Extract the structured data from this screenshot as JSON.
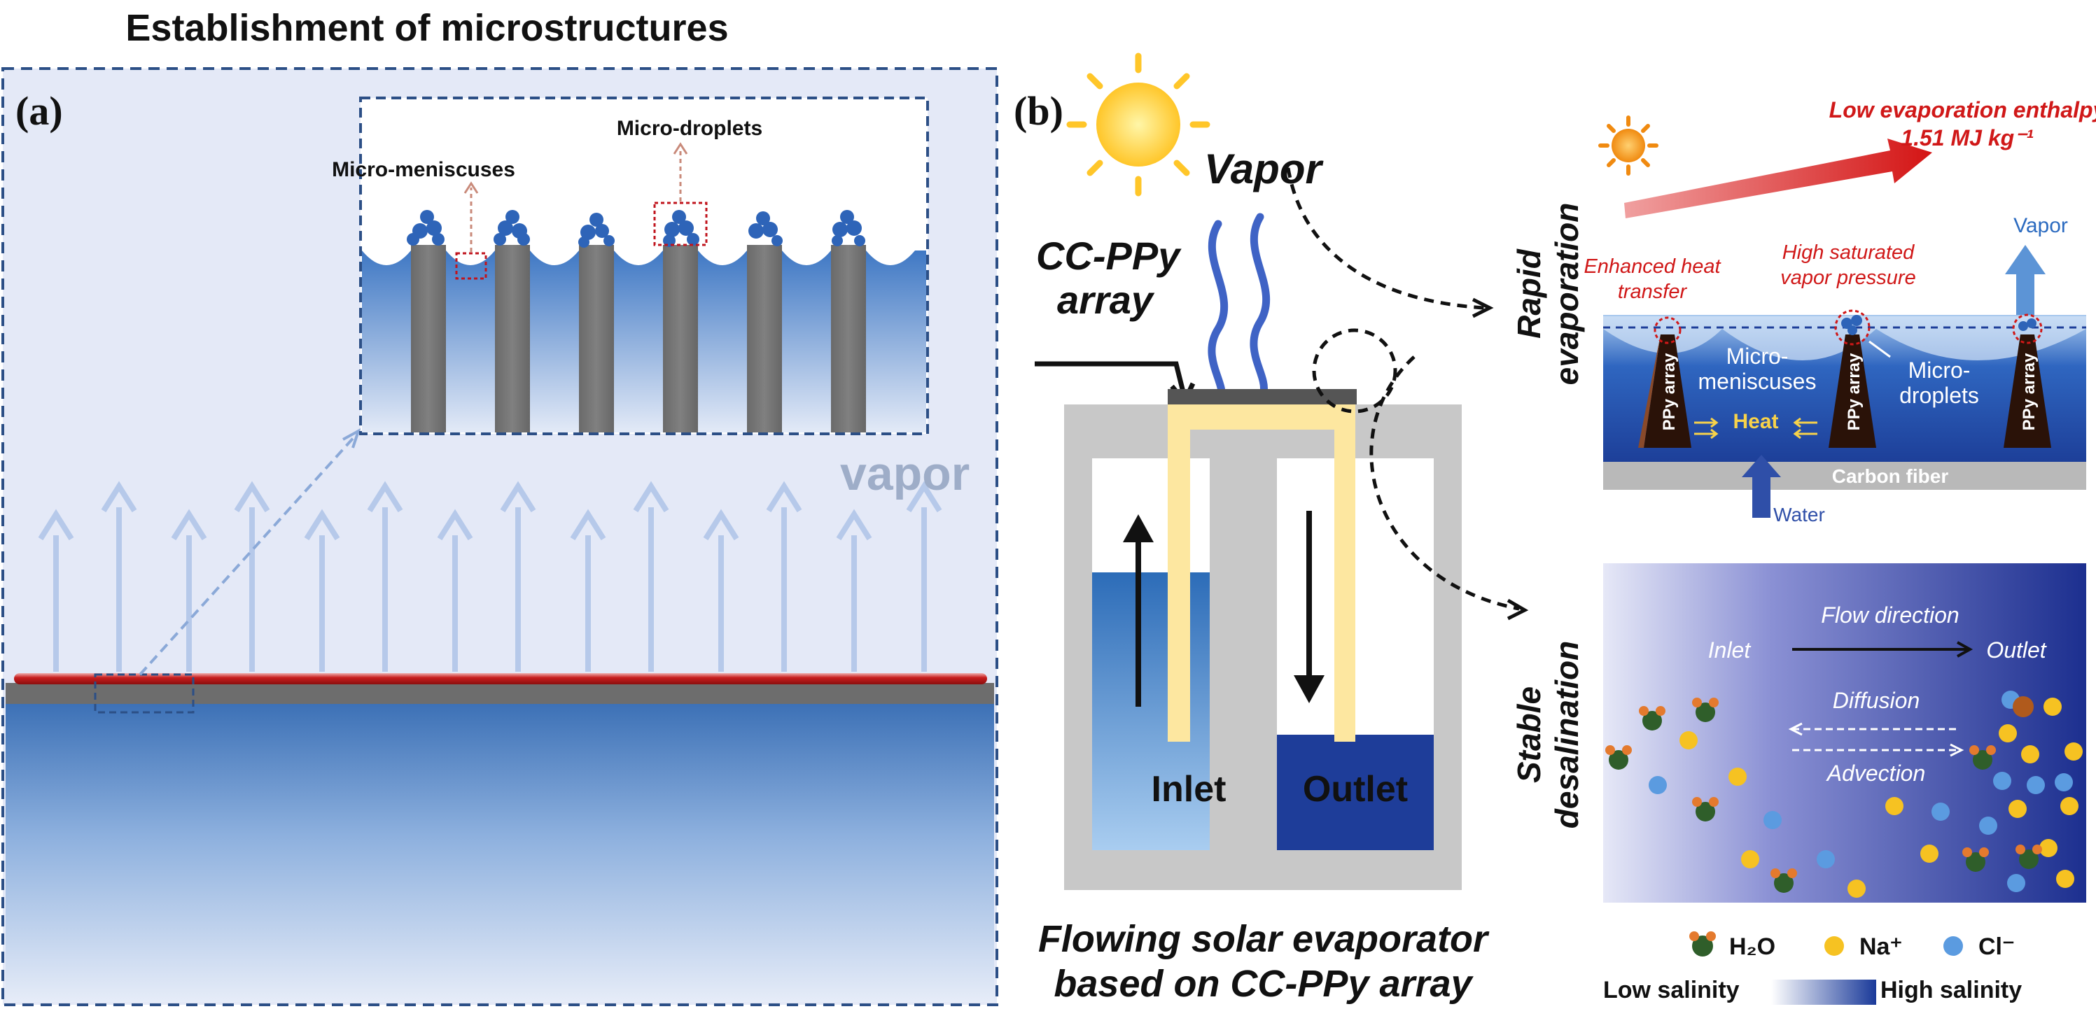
{
  "panel_a": {
    "title": "Establishment of microstructures",
    "label": "(a)",
    "inset": {
      "droplets_label": "Micro-droplets",
      "meniscus_label": "Micro-meniscuses"
    },
    "vapor_label": "vapor"
  },
  "panel_b": {
    "label": "(b)",
    "vapor_label": "Vapor",
    "array_label_line1": "CC-PPy",
    "array_label_line2": "array",
    "inlet_label": "Inlet",
    "outlet_label": "Outlet",
    "caption_line1": "Flowing solar evaporator",
    "caption_line2": "based on CC-PPy array",
    "rapid_line1": "Rapid",
    "rapid_line2": "evaporation",
    "stable_line1": "Stable",
    "stable_line2": "desalination",
    "evap_detail": {
      "enthalpy_line1": "Low evaporation enthalpy",
      "enthalpy_line2": "1.51 MJ kg⁻¹",
      "vapor": "Vapor",
      "enhanced_line1": "Enhanced heat",
      "enhanced_line2": "transfer",
      "saturated_line1": "High saturated",
      "saturated_line2": "vapor pressure",
      "ppy_array": "PPy array",
      "meniscus_line1": "Micro-",
      "meniscus_line2": "meniscuses",
      "droplet_line1": "Micro-",
      "droplet_line2": "droplets",
      "heat": "Heat",
      "carbon_fiber": "Carbon fiber",
      "water": "Water"
    },
    "desal_detail": {
      "flow_direction": "Flow direction",
      "inlet": "Inlet",
      "outlet": "Outlet",
      "diffusion": "Diffusion",
      "advection": "Advection"
    },
    "legend": {
      "h2o": "H₂O",
      "na": "Na⁺",
      "cl": "Cl⁻"
    },
    "salinity_low": "Low salinity",
    "salinity_high": "High salinity"
  }
}
